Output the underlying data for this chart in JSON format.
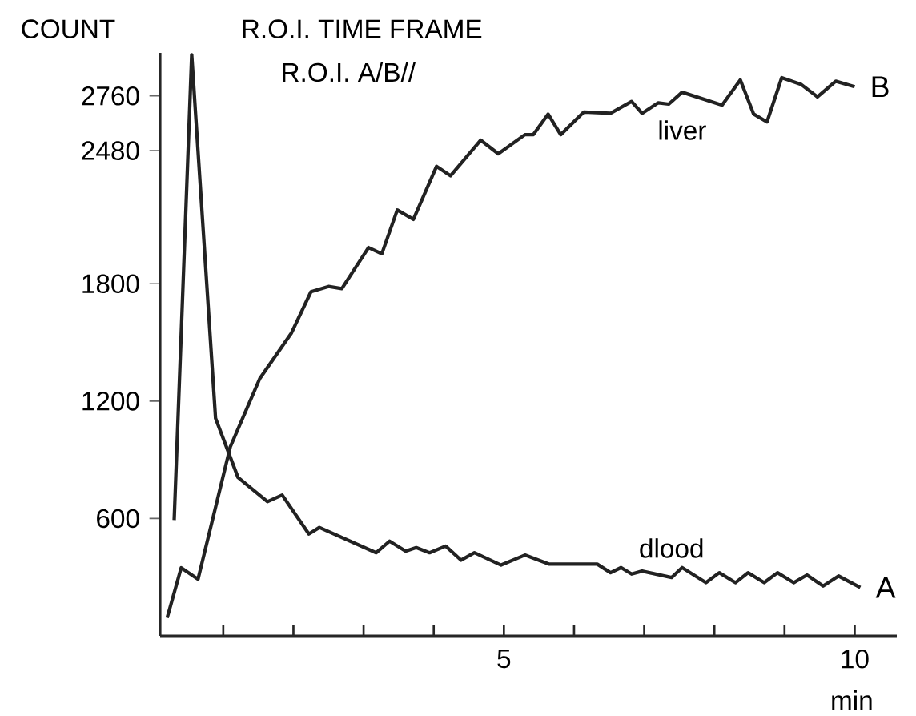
{
  "chart_data": {
    "type": "line",
    "title": "R.O.I. TIME FRAME",
    "subtitle": "R.O.I. A/B//",
    "ylabel": "COUNT",
    "xlabel": "min",
    "xlim": [
      0.1,
      10.6
    ],
    "ylim": [
      0,
      2980
    ],
    "xticks": [
      {
        "value": 1,
        "label": null
      },
      {
        "value": 2,
        "label": null
      },
      {
        "value": 3,
        "label": null
      },
      {
        "value": 4,
        "label": null
      },
      5,
      {
        "value": 6,
        "label": null
      },
      {
        "value": 7,
        "label": null
      },
      {
        "value": 8,
        "label": null
      },
      {
        "value": 9,
        "label": null
      },
      10
    ],
    "yticks": [
      600,
      1200,
      1800,
      2480,
      2760
    ],
    "grid": false,
    "legend": false,
    "marker": "none",
    "line_style": "solid",
    "series": [
      {
        "name": "liver",
        "color": "#222222",
        "x": [
          0.2,
          0.4,
          0.64,
          1.1,
          1.52,
          1.97,
          2.25,
          2.5,
          2.69,
          3.07,
          3.26,
          3.48,
          3.71,
          4.04,
          4.24,
          4.67,
          4.92,
          5.3,
          5.42,
          5.63,
          5.81,
          6.14,
          6.52,
          6.82,
          6.97,
          7.2,
          7.35,
          7.54,
          8.11,
          8.37,
          8.56,
          8.75,
          8.96,
          9.24,
          9.47,
          9.73,
          10.0
        ],
        "values": [
          92,
          348,
          290,
          966,
          1315,
          1547,
          1759,
          1786,
          1775,
          1985,
          1953,
          2177,
          2129,
          2400,
          2352,
          2534,
          2464,
          2562,
          2562,
          2667,
          2562,
          2678,
          2671,
          2732,
          2671,
          2725,
          2718,
          2779,
          2713,
          2842,
          2667,
          2627,
          2853,
          2818,
          2755,
          2835,
          2807
        ]
      },
      {
        "name": "dlood",
        "color": "#222222",
        "x": [
          0.3,
          0.55,
          0.89,
          1.21,
          1.63,
          1.84,
          2.22,
          2.37,
          3.18,
          3.37,
          3.6,
          3.75,
          3.94,
          4.17,
          4.39,
          4.58,
          4.96,
          5.3,
          5.64,
          6.33,
          6.52,
          6.67,
          6.82,
          6.97,
          7.39,
          7.54,
          7.88,
          8.07,
          8.3,
          8.48,
          8.71,
          8.9,
          9.13,
          9.32,
          9.55,
          9.77,
          10.08
        ],
        "values": [
          592,
          2970,
          1112,
          810,
          686,
          720,
          521,
          554,
          425,
          484,
          433,
          451,
          425,
          459,
          387,
          425,
          362,
          413,
          367,
          367,
          323,
          349,
          316,
          331,
          298,
          349,
          272,
          323,
          272,
          323,
          272,
          323,
          272,
          311,
          255,
          306,
          247
        ]
      }
    ],
    "annotations": [
      {
        "text": "B",
        "x": 10.0,
        "y": 2807
      },
      {
        "text": "A",
        "x": 10.08,
        "y": 247
      }
    ]
  }
}
